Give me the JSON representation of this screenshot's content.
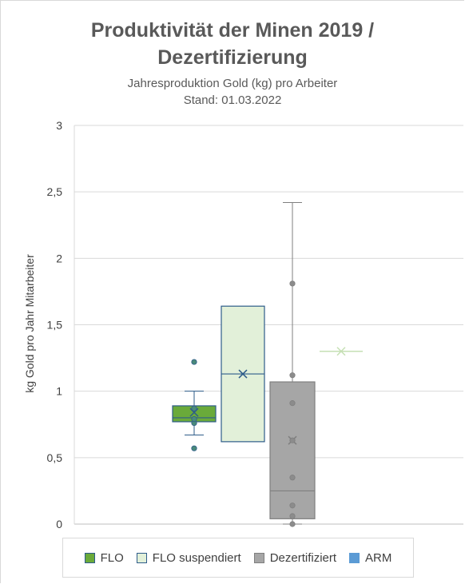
{
  "chart_data": {
    "type": "boxplot",
    "title": "Produktivität der Minen 2019 / Dezertifizierung",
    "subtitle": "Jahresproduktion  Gold  (kg) pro Arbeiter",
    "subtitle2": "Stand: 01.03.2022",
    "ylabel": "kg Gold pro Jahr Mitarbeiter",
    "ylim": [
      0,
      3
    ],
    "yticks": [
      "0",
      "0,5",
      "1",
      "1,5",
      "2",
      "2,5",
      "3"
    ],
    "grid": true,
    "legend_position": "bottom",
    "series": [
      {
        "name": "FLO",
        "color": "#6aaa3a",
        "border": "#2e5c8a",
        "min": 0.67,
        "q1": 0.77,
        "median": 0.8,
        "q3": 0.89,
        "max": 1.0,
        "mean": 0.84,
        "points": [
          0.76,
          0.79,
          0.87,
          0.57,
          1.22
        ]
      },
      {
        "name": "FLO suspendiert",
        "color": "#e2f0d9",
        "border": "#2e5c8a",
        "min": 0.62,
        "q1": 0.62,
        "median": 1.13,
        "q3": 1.64,
        "max": 1.64,
        "mean": 1.13,
        "points": []
      },
      {
        "name": "Dezertifiziert",
        "color": "#a6a6a6",
        "border": "#7f7f7f",
        "min": 0.0,
        "q1": 0.04,
        "median": 0.25,
        "q3": 1.07,
        "max": 2.42,
        "mean": 0.63,
        "points": [
          0.0,
          0.06,
          0.14,
          0.35,
          0.63,
          0.91,
          1.12,
          1.81
        ]
      },
      {
        "name": "ARM",
        "color": "#5b9bd5",
        "border": "#5b9bd5",
        "min": null,
        "q1": null,
        "median": 1.3,
        "q3": null,
        "max": null,
        "mean": 1.3,
        "points": []
      }
    ]
  }
}
